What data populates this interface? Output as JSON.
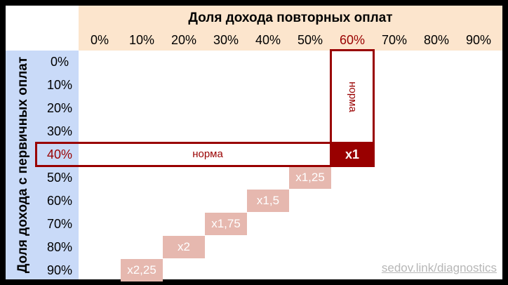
{
  "column_axis_title": "Доля дохода повторных оплат",
  "row_axis_title": "Доля дохода с первичных оплат",
  "columns": [
    "0%",
    "10%",
    "20%",
    "30%",
    "40%",
    "50%",
    "60%",
    "70%",
    "80%",
    "90%"
  ],
  "rows": [
    "0%",
    "10%",
    "20%",
    "30%",
    "40%",
    "50%",
    "60%",
    "70%",
    "80%",
    "90%"
  ],
  "highlighted_column": "60%",
  "highlighted_row": "40%",
  "norm_row_label": "норма",
  "norm_column_label": "норма",
  "multipliers": [
    {
      "row": "40%",
      "column": "60%",
      "label": "x1"
    },
    {
      "row": "50%",
      "column": "50%",
      "label": "x1,25"
    },
    {
      "row": "60%",
      "column": "40%",
      "label": "x1,5"
    },
    {
      "row": "70%",
      "column": "30%",
      "label": "x1,75"
    },
    {
      "row": "80%",
      "column": "20%",
      "label": "x2"
    },
    {
      "row": "90%",
      "column": "10%",
      "label": "x2,25"
    }
  ],
  "watermark": "sedov.link/diagnostics",
  "colors": {
    "header_band": "#fce5cd",
    "row_band": "#c9daf8",
    "accent": "#990000",
    "multiplier_cell": "#e6b8af",
    "watermark": "#b7b7b7"
  }
}
